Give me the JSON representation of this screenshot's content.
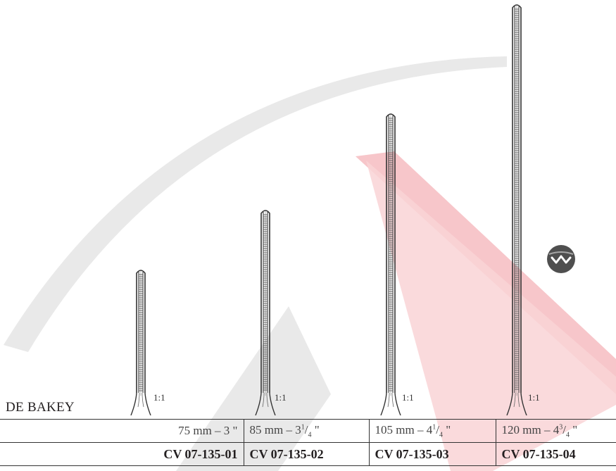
{
  "series_title": "DE BAKEY",
  "scale_label": "1:1",
  "brand_icon": "wave-logo-icon",
  "colors": {
    "watermark_gray": "#e6e6e6",
    "watermark_red": "#f4b8bd",
    "text": "#231f20"
  },
  "variants": [
    {
      "size_mm": "75 mm – 3",
      "size_frac_whole": "",
      "size_frac_num": "",
      "size_frac_den": "",
      "size_unit": " \"",
      "code": "CV 07-135-01"
    },
    {
      "size_mm": "85 mm – 3",
      "size_frac_num": "1",
      "size_frac_den": "4",
      "size_unit": " \"",
      "code": "CV 07-135-02"
    },
    {
      "size_mm": "105 mm – 4",
      "size_frac_num": "1",
      "size_frac_den": "4",
      "size_unit": " \"",
      "code": "CV 07-135-03"
    },
    {
      "size_mm": "120 mm – 4",
      "size_frac_num": "3",
      "size_frac_den": "4",
      "size_unit": " \"",
      "code": "CV 07-135-04"
    }
  ]
}
